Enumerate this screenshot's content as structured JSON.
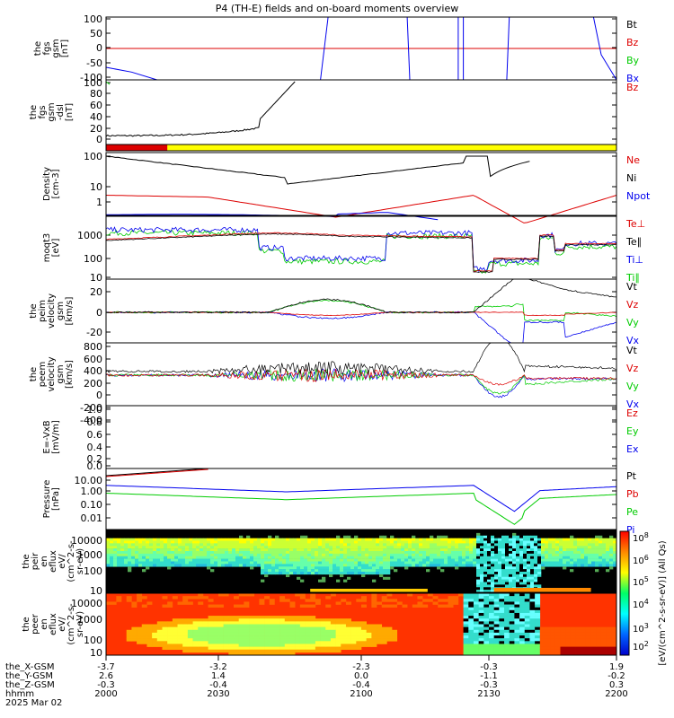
{
  "title": "P4 (TH-E) fields and on-board moments overview",
  "colors": {
    "black": "#000000",
    "red": "#dd0000",
    "green": "#00cc00",
    "blue": "#0000ee",
    "yellow": "#ffff00"
  },
  "panels": [
    {
      "id": "fgs",
      "ylabel": [
        "the",
        "fgs",
        "gsm",
        "[nT]"
      ],
      "ticks": [
        "100",
        "50",
        "0",
        "-50",
        "-100"
      ],
      "legend": [
        {
          "t": "Bt",
          "c": "black"
        },
        {
          "t": "Bz",
          "c": "red"
        },
        {
          "t": "By",
          "c": "green"
        },
        {
          "t": "Bx",
          "c": "blue"
        }
      ]
    },
    {
      "id": "fgsdsl",
      "ylabel": [
        "the",
        "fgs",
        "gsm",
        "-dsl",
        "[nT]"
      ],
      "ticks": [
        "100",
        "80",
        "60",
        "40",
        "20",
        "0"
      ],
      "legend": [
        {
          "t": "Bz",
          "c": "red"
        }
      ]
    },
    {
      "id": "mode",
      "ylabel": [],
      "ticks": [],
      "legend": []
    },
    {
      "id": "density",
      "ylabel": [
        "Density",
        "[cm-3]"
      ],
      "ticks": [
        "100",
        "10",
        "1"
      ],
      "legend": [
        {
          "t": "Ne",
          "c": "red"
        },
        {
          "t": "Ni",
          "c": "black"
        },
        {
          "t": "Npot",
          "c": "blue"
        }
      ]
    },
    {
      "id": "temp",
      "ylabel": [
        "moqt3",
        "[eV]"
      ],
      "ticks": [
        "1000",
        "100",
        "10"
      ],
      "legend": [
        {
          "t": "Te⊥",
          "c": "red"
        },
        {
          "t": "Te∥",
          "c": "black"
        },
        {
          "t": "Ti⊥",
          "c": "blue"
        },
        {
          "t": "Ti∥",
          "c": "green"
        }
      ]
    },
    {
      "id": "veln",
      "ylabel": [
        "the",
        "peim",
        "velocity",
        "gsm",
        "[km/s]"
      ],
      "ticks": [
        "20",
        "0",
        "-20"
      ],
      "legend": [
        {
          "t": "Vt",
          "c": "black"
        },
        {
          "t": "Vz",
          "c": "red"
        },
        {
          "t": "Vy",
          "c": "green"
        },
        {
          "t": "Vx",
          "c": "blue"
        }
      ]
    },
    {
      "id": "velr",
      "ylabel": [
        "the",
        "peem",
        "velocity",
        "gsm",
        "[km/s]"
      ],
      "ticks": [
        "800",
        "600",
        "400",
        "200",
        "0",
        "-200",
        "-400"
      ],
      "legend": [
        {
          "t": "Vt",
          "c": "black"
        },
        {
          "t": "Vz",
          "c": "red"
        },
        {
          "t": "Vy",
          "c": "green"
        },
        {
          "t": "Vx",
          "c": "blue"
        }
      ]
    },
    {
      "id": "efield",
      "ylabel": [
        "E=-VxB",
        "[mV/m]"
      ],
      "ticks": [
        "1.0",
        "0.8",
        "0.6",
        "0.4",
        "0.2",
        "0.0"
      ],
      "legend": [
        {
          "t": "Ez",
          "c": "red"
        },
        {
          "t": "Ey",
          "c": "green"
        },
        {
          "t": "Ex",
          "c": "blue"
        }
      ]
    },
    {
      "id": "pressure",
      "ylabel": [
        "Pressure",
        "[nPa]"
      ],
      "ticks": [
        "10.00",
        "1.00",
        "0.10",
        "0.01"
      ],
      "legend": [
        {
          "t": "Pt",
          "c": "black"
        },
        {
          "t": "Pb",
          "c": "red"
        },
        {
          "t": "Pe",
          "c": "green"
        },
        {
          "t": "Pi",
          "c": "blue"
        }
      ]
    },
    {
      "id": "ispec",
      "ylabel": [
        "the",
        "peir",
        "en",
        "eflux",
        "eV/",
        "(cm^2-s-",
        "sr-eV)"
      ],
      "ticks": [
        "10000",
        "1000",
        "100",
        "10"
      ],
      "legend": []
    },
    {
      "id": "espec",
      "ylabel": [
        "the",
        "peer",
        "en",
        "eflux",
        "eV/",
        "(cm^2-s-",
        "sr-eV)"
      ],
      "ticks": [
        "10000",
        "1000",
        "100",
        "10"
      ],
      "legend": []
    }
  ],
  "colorbar": {
    "ticks": [
      "10^8",
      "10^6",
      "10^5",
      "10^4",
      "10^3",
      "10^2"
    ],
    "label": "[eV/(cm^2-s-sr-eV)] (All Qs)"
  },
  "x_axis": {
    "rows": [
      {
        "label": "the_X-GSM",
        "values": [
          "-3.7",
          "-3.2",
          "-2.3",
          "-0.3",
          "1.9"
        ]
      },
      {
        "label": "the_Y-GSM",
        "values": [
          "2.6",
          "1.4",
          "0.0",
          "-1.1",
          "-0.2"
        ]
      },
      {
        "label": "the_Z-GSM",
        "values": [
          "-0.3",
          "-0.4",
          "-0.4",
          "-0.3",
          "0.3"
        ]
      },
      {
        "label": "hhmm",
        "values": [
          "2000",
          "2030",
          "2100",
          "2130",
          "2200"
        ]
      }
    ],
    "date": "2025 Mar 02"
  },
  "chart_data": {
    "type": "line",
    "title": "P4 (TH-E) fields and on-board moments overview",
    "x": [
      "2000",
      "2030",
      "2100",
      "2130",
      "2200"
    ],
    "series": [
      {
        "name": "Ne",
        "panel": "density",
        "points": [
          [
            0,
            5
          ],
          [
            0.2,
            4
          ],
          [
            0.4,
            1
          ],
          [
            0.6,
            2
          ],
          [
            0.75,
            5
          ],
          [
            0.85,
            0.6
          ],
          [
            1,
            5
          ]
        ]
      },
      {
        "name": "Ni",
        "panel": "density",
        "points": [
          [
            0,
            100
          ],
          [
            0.3,
            20
          ],
          [
            0.5,
            10
          ],
          [
            0.7,
            40
          ],
          [
            0.75,
            20
          ],
          [
            0.8,
            50
          ]
        ]
      },
      {
        "name": "Npot",
        "panel": "density",
        "points": [
          [
            0,
            1
          ],
          [
            0.3,
            1
          ],
          [
            0.55,
            1.4
          ],
          [
            0.65,
            0.7
          ]
        ]
      }
    ]
  }
}
